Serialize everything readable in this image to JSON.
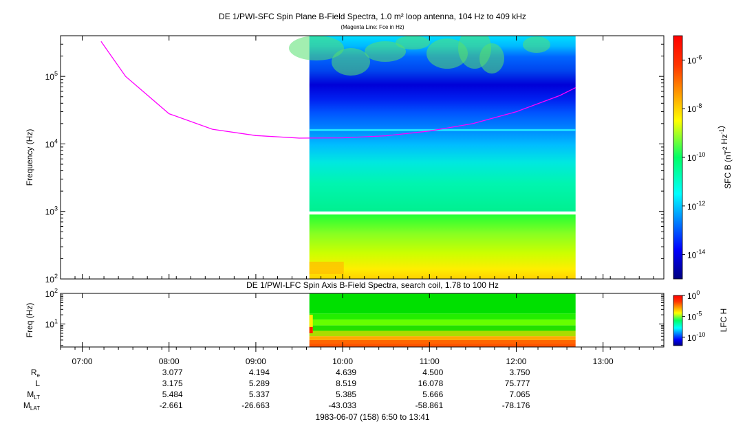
{
  "chart_data": [
    {
      "type": "heatmap",
      "title": "DE 1/PWI-SFC  Spin Plane B-Field Spectra, 1.0 m² loop antenna, 104 Hz to 409 kHz",
      "subtitle": "(Magenta Line: Fce in Hz)",
      "ylabel": "Frequency (Hz)",
      "yscale": "log",
      "ylim": [
        100,
        400000
      ],
      "yticks": [
        "10^2",
        "10^3",
        "10^4",
        "10^5"
      ],
      "xlim": [
        "06:45",
        "13:42"
      ],
      "data_extent": [
        "09:37",
        "12:41"
      ],
      "colorbar": {
        "label": "SFC B (nT^2 Hz^-1)",
        "scale": "log",
        "range": [
          1e-15,
          1e-05
        ],
        "ticks": [
          "10^-14",
          "10^-12",
          "10^-10",
          "10^-8",
          "10^-6"
        ]
      },
      "gaps_hz": [
        [
          1000,
          900
        ]
      ],
      "series": [
        {
          "name": "Fce in Hz",
          "color": "#ff00ff",
          "x": [
            "07:13",
            "07:30",
            "08:00",
            "08:30",
            "09:00",
            "09:30",
            "10:00",
            "10:30",
            "11:00",
            "11:30",
            "12:00",
            "12:30",
            "12:41"
          ],
          "y": [
            330000,
            100000,
            28000,
            16500,
            13300,
            12200,
            12300,
            13200,
            15500,
            20000,
            30000,
            52000,
            68000
          ]
        }
      ]
    },
    {
      "type": "heatmap",
      "title": "DE 1/PWI-LFC  Spin Axis B-Field Spectra, search coil, 1.78 to 100 Hz",
      "ylabel": "Freq (Hz)",
      "yscale": "log",
      "ylim": [
        1.78,
        100
      ],
      "yticks": [
        "10^1",
        "10^2"
      ],
      "colorbar": {
        "label": "LFC H",
        "scale": "log",
        "range": [
          1e-12,
          1
        ],
        "ticks": [
          "10^-10",
          "10^-5",
          "10^0"
        ]
      }
    }
  ],
  "x_axis": {
    "ticks": [
      "07:00",
      "08:00",
      "09:00",
      "10:00",
      "11:00",
      "12:00",
      "13:00"
    ],
    "ephemeris": [
      {
        "label": "R",
        "sub": "e",
        "values": [
          "3.077",
          "4.194",
          "4.639",
          "4.500",
          "3.750"
        ]
      },
      {
        "label": "L",
        "sub": "",
        "values": [
          "3.175",
          "5.289",
          "8.519",
          "16.078",
          "75.777"
        ]
      },
      {
        "label": "M",
        "sub": "LT",
        "values": [
          "5.484",
          "5.337",
          "5.385",
          "5.666",
          "7.065"
        ]
      },
      {
        "label": "M",
        "sub": "LAT",
        "values": [
          "-2.661",
          "-26.663",
          "-43.033",
          "-58.861",
          "-78.176"
        ]
      }
    ],
    "footer": "1983-06-07 (158) 6:50 to 13:41"
  }
}
